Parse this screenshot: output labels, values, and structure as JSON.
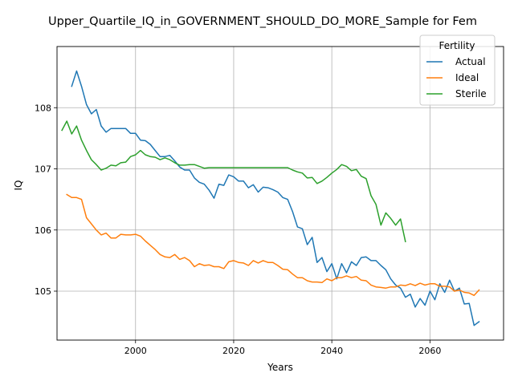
{
  "chart_data": {
    "type": "line",
    "title": "Upper_Quartile_IQ_in_GOVERNMENT_SHOULD_DO_MORE_Sample for Fem",
    "xlabel": "Years",
    "ylabel": "IQ",
    "xlim": [
      1984,
      2075
    ],
    "ylim": [
      104.2,
      109.0
    ],
    "x_ticks": [
      2000,
      2020,
      2040,
      2060
    ],
    "x_tick_labels": [
      "2000",
      "2020",
      "2040",
      "2060"
    ],
    "y_ticks": [
      105,
      106,
      107,
      108
    ],
    "y_tick_labels": [
      "105",
      "106",
      "107",
      "108"
    ],
    "grid": true,
    "legend": {
      "title": "Fertility",
      "placement": "top-right"
    },
    "series": [
      {
        "name": "Actual",
        "color": "#1f77b4",
        "x": [
          1987,
          1988,
          1989,
          1990,
          1991,
          1992,
          1993,
          1994,
          1995,
          1996,
          1997,
          1998,
          1999,
          2000,
          2001,
          2002,
          2003,
          2004,
          2005,
          2006,
          2007,
          2008,
          2009,
          2010,
          2011,
          2012,
          2013,
          2014,
          2015,
          2016,
          2017,
          2018,
          2019,
          2020,
          2021,
          2022,
          2023,
          2024,
          2025,
          2026,
          2027,
          2028,
          2029,
          2030,
          2031,
          2032,
          2033,
          2034,
          2035,
          2036,
          2037,
          2038,
          2039,
          2040,
          2041,
          2042,
          2043,
          2044,
          2045,
          2046,
          2047,
          2048,
          2049,
          2050,
          2051,
          2052,
          2053,
          2054,
          2055,
          2056,
          2057,
          2058,
          2059,
          2060,
          2061,
          2062,
          2063,
          2064,
          2065,
          2066,
          2067,
          2068,
          2069,
          2070
        ],
        "values": [
          108.35,
          108.6,
          108.35,
          108.05,
          107.9,
          107.97,
          107.7,
          107.6,
          107.66,
          107.66,
          107.66,
          107.66,
          107.58,
          107.58,
          107.47,
          107.46,
          107.4,
          107.3,
          107.2,
          107.2,
          107.22,
          107.13,
          107.03,
          106.98,
          106.98,
          106.85,
          106.78,
          106.75,
          106.65,
          106.52,
          106.75,
          106.73,
          106.9,
          106.87,
          106.8,
          106.8,
          106.69,
          106.74,
          106.62,
          106.7,
          106.69,
          106.66,
          106.62,
          106.53,
          106.5,
          106.3,
          106.05,
          106.02,
          105.76,
          105.88,
          105.47,
          105.55,
          105.32,
          105.45,
          105.2,
          105.45,
          105.3,
          105.48,
          105.42,
          105.55,
          105.56,
          105.5,
          105.5,
          105.42,
          105.35,
          105.2,
          105.1,
          105.05,
          104.9,
          104.95,
          104.74,
          104.88,
          104.77,
          105.0,
          104.86,
          105.12,
          104.98,
          105.18,
          105.0,
          105.05,
          104.79,
          104.8,
          104.44,
          104.5
        ]
      },
      {
        "name": "Ideal",
        "color": "#ff7f0e",
        "x": [
          1986,
          1987,
          1988,
          1989,
          1990,
          1991,
          1992,
          1993,
          1994,
          1995,
          1996,
          1997,
          1998,
          1999,
          2000,
          2001,
          2002,
          2003,
          2004,
          2005,
          2006,
          2007,
          2008,
          2009,
          2010,
          2011,
          2012,
          2013,
          2014,
          2015,
          2016,
          2017,
          2018,
          2019,
          2020,
          2021,
          2022,
          2023,
          2024,
          2025,
          2026,
          2027,
          2028,
          2029,
          2030,
          2031,
          2032,
          2033,
          2034,
          2035,
          2036,
          2037,
          2038,
          2039,
          2040,
          2041,
          2042,
          2043,
          2044,
          2045,
          2046,
          2047,
          2048,
          2049,
          2050,
          2051,
          2052,
          2053,
          2054,
          2055,
          2056,
          2057,
          2058,
          2059,
          2060,
          2061,
          2062,
          2063,
          2064,
          2065,
          2066,
          2067,
          2068,
          2069,
          2070
        ],
        "values": [
          106.58,
          106.53,
          106.53,
          106.5,
          106.2,
          106.1,
          106.0,
          105.92,
          105.95,
          105.87,
          105.87,
          105.93,
          105.92,
          105.92,
          105.93,
          105.9,
          105.82,
          105.75,
          105.68,
          105.6,
          105.56,
          105.55,
          105.6,
          105.52,
          105.55,
          105.5,
          105.4,
          105.45,
          105.42,
          105.43,
          105.4,
          105.4,
          105.37,
          105.48,
          105.5,
          105.47,
          105.46,
          105.42,
          105.5,
          105.46,
          105.5,
          105.47,
          105.47,
          105.42,
          105.36,
          105.35,
          105.28,
          105.22,
          105.22,
          105.17,
          105.15,
          105.15,
          105.14,
          105.2,
          105.17,
          105.22,
          105.22,
          105.25,
          105.22,
          105.24,
          105.18,
          105.17,
          105.1,
          105.07,
          105.06,
          105.05,
          105.07,
          105.07,
          105.1,
          105.09,
          105.12,
          105.09,
          105.13,
          105.1,
          105.12,
          105.12,
          105.08,
          105.08,
          105.07,
          105.0,
          105.02,
          104.98,
          104.97,
          104.93,
          105.02
        ]
      },
      {
        "name": "Sterile",
        "color": "#2ca02c",
        "x": [
          1985,
          1986,
          1987,
          1988,
          1989,
          1990,
          1991,
          1992,
          1993,
          1994,
          1995,
          1996,
          1997,
          1998,
          1999,
          2000,
          2001,
          2002,
          2003,
          2004,
          2005,
          2006,
          2007,
          2008,
          2009,
          2010,
          2011,
          2012,
          2013,
          2014,
          2015,
          2016,
          2017,
          2018,
          2019,
          2020,
          2021,
          2022,
          2023,
          2024,
          2025,
          2026,
          2027,
          2028,
          2029,
          2030,
          2031,
          2032,
          2033,
          2034,
          2035,
          2036,
          2037,
          2038,
          2039,
          2040,
          2041,
          2042,
          2043,
          2044,
          2045,
          2046,
          2047,
          2048,
          2049,
          2050,
          2051,
          2052,
          2053,
          2054,
          2055
        ],
        "values": [
          107.63,
          107.78,
          107.57,
          107.7,
          107.47,
          107.3,
          107.15,
          107.07,
          106.98,
          107.01,
          107.06,
          107.05,
          107.1,
          107.11,
          107.2,
          107.23,
          107.3,
          107.23,
          107.2,
          107.19,
          107.15,
          107.18,
          107.15,
          107.1,
          107.06,
          107.06,
          107.07,
          107.07,
          107.04,
          107.01,
          107.02,
          107.02,
          107.02,
          107.02,
          107.02,
          107.02,
          107.02,
          107.02,
          107.02,
          107.02,
          107.02,
          107.02,
          107.02,
          107.02,
          107.02,
          107.02,
          107.02,
          106.98,
          106.95,
          106.93,
          106.85,
          106.86,
          106.76,
          106.8,
          106.86,
          106.93,
          106.99,
          107.07,
          107.04,
          106.97,
          106.99,
          106.88,
          106.84,
          106.56,
          106.42,
          106.08,
          106.28,
          106.19,
          106.08,
          106.18,
          105.81
        ]
      }
    ]
  }
}
